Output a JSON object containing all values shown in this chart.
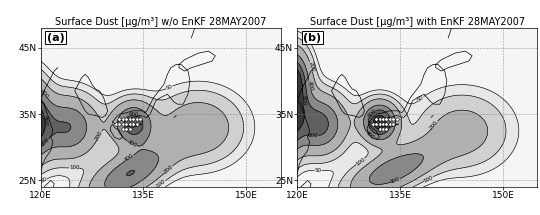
{
  "title_left": "Surface Dust [μg/m³] w/o EnKF 28MAY2007",
  "title_right": "Surface Dust [μg/m³] with EnKF 28MAY2007",
  "label_a": "(a)",
  "label_b": "(b)",
  "lon_range": [
    120,
    155
  ],
  "lat_range": [
    24,
    48
  ],
  "xticks": [
    120,
    135,
    150
  ],
  "yticks": [
    25,
    35,
    45
  ],
  "xlabel_labels": [
    "120E",
    "135E",
    "150E"
  ],
  "ylabel_labels": [
    "25N",
    "35N",
    "45N"
  ],
  "contour_levels": [
    50,
    100,
    200,
    400,
    600,
    800
  ],
  "fill_levels": [
    0,
    50,
    100,
    200,
    400,
    600,
    800,
    1200
  ],
  "fill_colors": [
    "#f5f5f5",
    "#e8e8e8",
    "#d0d0d0",
    "#b0b0b0",
    "#888888",
    "#606060",
    "#383838"
  ],
  "station_lons": [
    131.5,
    132.0,
    132.5,
    133.0,
    133.5,
    134.0,
    134.5,
    131.0,
    131.5,
    132.0,
    132.5,
    133.0,
    133.5,
    134.0,
    132.0,
    132.5,
    133.0
  ],
  "station_lats": [
    34.2,
    34.2,
    34.2,
    34.2,
    34.2,
    34.2,
    34.2,
    33.5,
    33.5,
    33.5,
    33.5,
    33.5,
    33.5,
    33.5,
    32.8,
    32.8,
    32.8
  ],
  "background_color": "#ffffff",
  "title_fontsize": 7.0,
  "tick_fontsize": 6.5,
  "label_fontsize": 8.0
}
